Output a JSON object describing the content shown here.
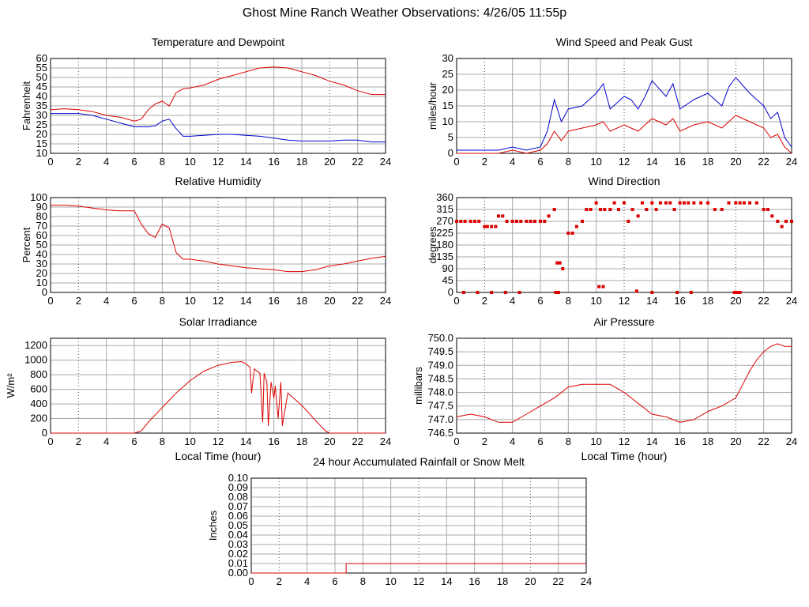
{
  "page": {
    "title": "Ghost Mine Ranch Weather Observations: 4/26/05 11:55p",
    "colors": {
      "series_red": "#dd0000",
      "series_blue": "#0000cc",
      "grid": "#a8a8a8",
      "background": "#ffffff"
    }
  },
  "chart_data": [
    {
      "id": "temp",
      "type": "line",
      "title": "Temperature and Dewpoint",
      "ylabel": "Fahrenheit",
      "xlabel": "",
      "xlim": [
        0,
        24
      ],
      "ylim": [
        10,
        60
      ],
      "x_ticks": [
        0,
        2,
        4,
        6,
        8,
        10,
        12,
        14,
        16,
        18,
        20,
        22,
        24
      ],
      "y_ticks": [
        10,
        15,
        20,
        25,
        30,
        35,
        40,
        45,
        50,
        55,
        60
      ],
      "grid": true,
      "series": [
        {
          "color": "#dd0000",
          "x": [
            0,
            1,
            2,
            3,
            4,
            5,
            6,
            6.5,
            7,
            7.5,
            8,
            8.5,
            9,
            9.5,
            10,
            11,
            12,
            13,
            14,
            15,
            16,
            17,
            18,
            19,
            20,
            21,
            22,
            23,
            24
          ],
          "y": [
            33,
            33.5,
            33,
            32,
            30,
            29,
            27,
            28,
            33,
            36,
            37.5,
            35,
            42,
            44,
            44.5,
            46,
            49,
            51,
            53,
            55,
            55.5,
            55,
            53,
            51,
            48,
            46,
            43,
            41,
            41
          ]
        },
        {
          "color": "#0000cc",
          "x": [
            0,
            1,
            2,
            3,
            4,
            5,
            6,
            7,
            7.5,
            8,
            8.5,
            9,
            9.5,
            10,
            11,
            12,
            13,
            14,
            15,
            16,
            17,
            18,
            19,
            20,
            21,
            22,
            23,
            24
          ],
          "y": [
            31,
            31,
            31,
            30,
            28,
            26,
            24,
            24,
            24.5,
            27,
            28,
            23,
            19,
            19,
            19.5,
            20,
            20,
            19.5,
            19,
            18,
            17,
            16.5,
            16.5,
            16.5,
            17,
            17,
            16,
            16
          ]
        }
      ]
    },
    {
      "id": "wind",
      "type": "line",
      "title": "Wind Speed and Peak Gust",
      "ylabel": "miles/hour",
      "xlabel": "",
      "xlim": [
        0,
        24
      ],
      "ylim": [
        0,
        30
      ],
      "x_ticks": [
        0,
        2,
        4,
        6,
        8,
        10,
        12,
        14,
        16,
        18,
        20,
        22,
        24
      ],
      "y_ticks": [
        0,
        5,
        10,
        15,
        20,
        25,
        30
      ],
      "grid": true,
      "series": [
        {
          "color": "#0000cc",
          "x": [
            0,
            1,
            2,
            3,
            4,
            5,
            6,
            6.5,
            7,
            7.5,
            8,
            9,
            10,
            10.5,
            11,
            12,
            12.5,
            13,
            13.5,
            14,
            15,
            15.5,
            16,
            17,
            18,
            19,
            19.5,
            20,
            21,
            22,
            22.5,
            23,
            23.5,
            24
          ],
          "y": [
            1,
            1,
            1,
            1,
            2,
            1,
            2,
            7,
            17,
            10,
            14,
            15,
            19,
            22,
            14,
            18,
            17,
            14,
            18,
            23,
            18,
            22,
            14,
            17,
            19,
            15,
            21,
            24,
            19,
            15,
            11,
            13,
            5,
            2
          ]
        },
        {
          "color": "#dd0000",
          "x": [
            0,
            1,
            2,
            3,
            4,
            5,
            6,
            6.5,
            7,
            7.5,
            8,
            9,
            10,
            10.5,
            11,
            12,
            12.5,
            13,
            13.5,
            14,
            15,
            15.5,
            16,
            17,
            18,
            19,
            19.5,
            20,
            21,
            22,
            22.5,
            23,
            23.5,
            24
          ],
          "y": [
            0,
            0,
            0,
            0,
            1,
            0,
            1,
            3,
            7,
            4,
            7,
            8,
            9,
            10,
            7,
            9,
            8,
            7,
            9,
            11,
            9,
            11,
            7,
            9,
            10,
            8,
            10,
            12,
            10,
            8,
            5,
            6,
            2,
            0
          ]
        }
      ]
    },
    {
      "id": "rh",
      "type": "line",
      "title": "Relative Humidity",
      "ylabel": "Percent",
      "xlabel": "",
      "xlim": [
        0,
        24
      ],
      "ylim": [
        0,
        100
      ],
      "x_ticks": [
        0,
        2,
        4,
        6,
        8,
        10,
        12,
        14,
        16,
        18,
        20,
        22,
        24
      ],
      "y_ticks": [
        0,
        10,
        20,
        30,
        40,
        50,
        60,
        70,
        80,
        90,
        100
      ],
      "grid": true,
      "series": [
        {
          "color": "#dd0000",
          "x": [
            0,
            1,
            2,
            3,
            4,
            5,
            6,
            6.5,
            7,
            7.5,
            8,
            8.5,
            9,
            9.5,
            10,
            11,
            12,
            13,
            14,
            15,
            16,
            17,
            18,
            19,
            20,
            21,
            22,
            23,
            24
          ],
          "y": [
            92,
            92,
            91,
            89,
            87,
            86,
            86,
            72,
            62,
            58,
            72,
            68,
            42,
            35,
            35,
            33,
            30,
            28,
            26,
            25,
            24,
            22,
            22,
            24,
            28,
            30,
            33,
            36,
            38
          ]
        }
      ]
    },
    {
      "id": "wdir",
      "type": "scatter",
      "title": "Wind Direction",
      "ylabel": "degrees",
      "xlabel": "",
      "xlim": [
        0,
        24
      ],
      "ylim": [
        0,
        360
      ],
      "x_ticks": [
        0,
        2,
        4,
        6,
        8,
        10,
        12,
        14,
        16,
        18,
        20,
        22,
        24
      ],
      "y_ticks": [
        0,
        45,
        90,
        135,
        180,
        225,
        270,
        315,
        360
      ],
      "grid": true,
      "series": [
        {
          "color": "#dd0000",
          "x": [
            0,
            0.3,
            0.6,
            1,
            1.3,
            1.6,
            2,
            2.2,
            2.5,
            2.8,
            3,
            3.3,
            3.6,
            4,
            4.3,
            4.6,
            5,
            5.3,
            5.6,
            6,
            6.3,
            6.6,
            7,
            7.2,
            7.4,
            7.6,
            8,
            8.3,
            8.6,
            9,
            9.3,
            9.6,
            10,
            10.3,
            10.6,
            11,
            11.3,
            11.6,
            12,
            12.3,
            12.6,
            13,
            13.3,
            13.6,
            14,
            14.3,
            14.6,
            15,
            15.3,
            15.6,
            16,
            16.3,
            16.6,
            17,
            17.5,
            18,
            18.5,
            19,
            19.5,
            20,
            20.3,
            20.6,
            21,
            21.5,
            22,
            22.3,
            22.6,
            23,
            23.3,
            23.6,
            24,
            0.5,
            1.5,
            2.5,
            3.5,
            4.5,
            7.1,
            7.3,
            10.2,
            10.5,
            12.9,
            14,
            15.8,
            16.8,
            19.9,
            20.1,
            20.3
          ],
          "y": [
            270,
            270,
            270,
            270,
            270,
            270,
            250,
            250,
            250,
            250,
            290,
            290,
            270,
            270,
            270,
            270,
            270,
            270,
            270,
            270,
            270,
            290,
            315,
            112,
            112,
            90,
            225,
            225,
            250,
            270,
            315,
            315,
            340,
            315,
            315,
            315,
            340,
            315,
            340,
            270,
            315,
            290,
            340,
            315,
            340,
            315,
            340,
            340,
            340,
            315,
            340,
            340,
            340,
            340,
            340,
            340,
            315,
            315,
            340,
            340,
            340,
            340,
            340,
            340,
            315,
            315,
            290,
            270,
            250,
            270,
            270,
            0,
            0,
            0,
            0,
            0,
            0,
            0,
            22,
            22,
            5,
            0,
            0,
            0,
            0,
            0,
            0
          ]
        }
      ]
    },
    {
      "id": "solar",
      "type": "line",
      "title": "Solar Irradiance",
      "ylabel": "W/m²",
      "xlabel": "Local Time (hour)",
      "xlim": [
        0,
        24
      ],
      "ylim": [
        0,
        1300
      ],
      "x_ticks": [
        0,
        2,
        4,
        6,
        8,
        10,
        12,
        14,
        16,
        18,
        20,
        22,
        24
      ],
      "y_ticks": [
        0,
        200,
        400,
        600,
        800,
        1000,
        1200
      ],
      "grid": true,
      "series": [
        {
          "color": "#dd0000",
          "x": [
            0,
            6,
            6.5,
            7,
            8,
            9,
            10,
            11,
            12,
            13,
            13.7,
            14,
            14.3,
            14.4,
            14.6,
            14.8,
            15,
            15.2,
            15.3,
            15.5,
            15.6,
            15.8,
            16,
            16.1,
            16.3,
            16.5,
            16.6,
            17,
            18,
            19,
            19.7,
            20,
            24
          ],
          "y": [
            0,
            0,
            30,
            150,
            350,
            550,
            720,
            850,
            930,
            970,
            980,
            950,
            900,
            550,
            880,
            850,
            820,
            150,
            820,
            700,
            100,
            700,
            480,
            650,
            200,
            700,
            100,
            550,
            380,
            170,
            30,
            0,
            0
          ]
        }
      ]
    },
    {
      "id": "pressure",
      "type": "line",
      "title": "Air Pressure",
      "ylabel": "millibars",
      "xlabel": "Local Time (hour)",
      "xlim": [
        0,
        24
      ],
      "ylim": [
        746.5,
        750.0
      ],
      "x_ticks": [
        0,
        2,
        4,
        6,
        8,
        10,
        12,
        14,
        16,
        18,
        20,
        22,
        24
      ],
      "y_ticks": [
        746.5,
        747.0,
        747.5,
        748.0,
        748.5,
        749.0,
        749.5,
        750.0
      ],
      "grid": true,
      "series": [
        {
          "color": "#dd0000",
          "x": [
            0,
            1,
            2,
            3,
            4,
            5,
            6,
            7,
            8,
            9,
            10,
            11,
            12,
            13,
            14,
            15,
            16,
            17,
            18,
            19,
            20,
            20.5,
            21,
            21.5,
            22,
            22.5,
            23,
            23.5,
            24
          ],
          "y": [
            747.1,
            747.2,
            747.1,
            746.9,
            746.9,
            747.2,
            747.5,
            747.8,
            748.2,
            748.3,
            748.3,
            748.3,
            748.0,
            747.6,
            747.2,
            747.1,
            746.9,
            747.0,
            747.3,
            747.5,
            747.8,
            748.3,
            748.8,
            749.2,
            749.5,
            749.7,
            749.8,
            749.7,
            749.7
          ]
        }
      ]
    },
    {
      "id": "rain",
      "type": "line",
      "title": "24 hour Accumulated Rainfall or Snow Melt",
      "ylabel": "Inches",
      "xlabel": "",
      "xlim": [
        0,
        24
      ],
      "ylim": [
        0,
        0.1
      ],
      "x_ticks": [
        0,
        2,
        4,
        6,
        8,
        10,
        12,
        14,
        16,
        18,
        20,
        22,
        24
      ],
      "y_ticks": [
        0.0,
        0.01,
        0.02,
        0.03,
        0.04,
        0.05,
        0.06,
        0.07,
        0.08,
        0.09,
        0.1
      ],
      "grid": true,
      "series": [
        {
          "color": "#dd0000",
          "x": [
            0,
            6.8,
            6.8,
            24
          ],
          "y": [
            0,
            0,
            0.01,
            0.01
          ]
        }
      ]
    }
  ]
}
